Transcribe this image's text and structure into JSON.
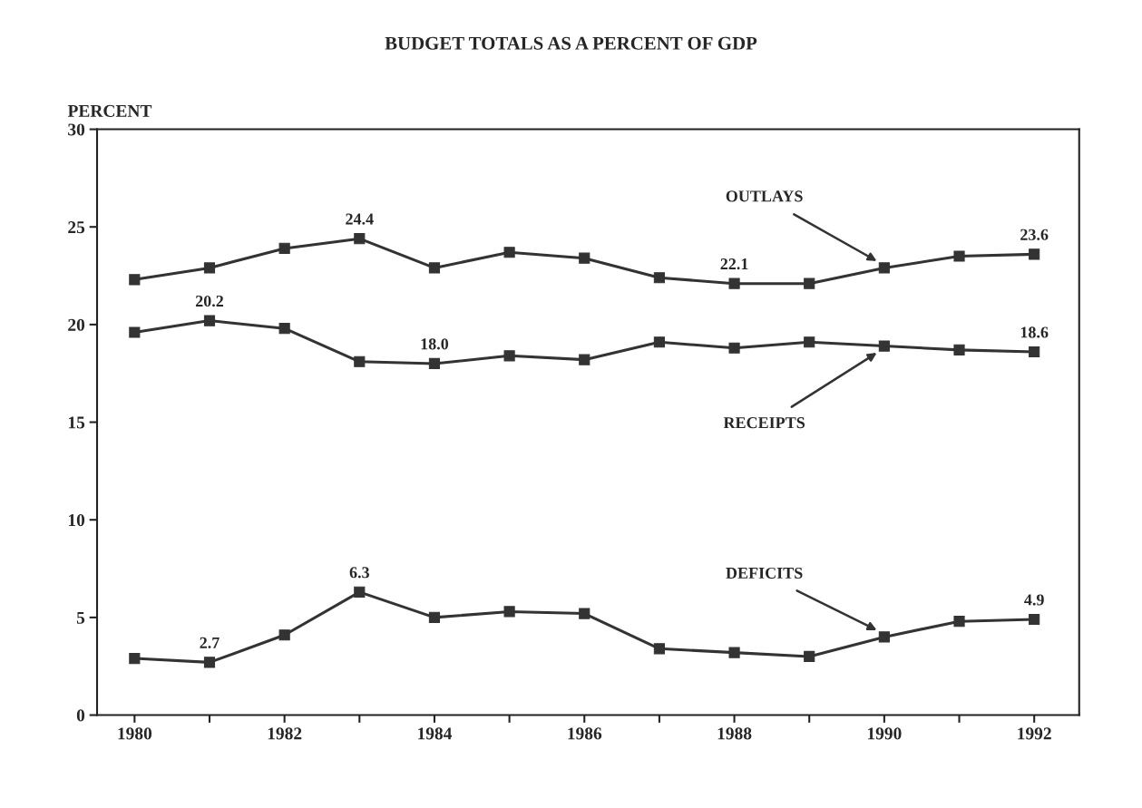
{
  "chart_data": {
    "type": "line",
    "title": "BUDGET TOTALS AS A PERCENT OF GDP",
    "ylabel": "PERCENT",
    "x": [
      1980,
      1981,
      1982,
      1983,
      1984,
      1985,
      1986,
      1987,
      1988,
      1989,
      1990,
      1991,
      1992
    ],
    "series": [
      {
        "name": "OUTLAYS",
        "color": "#333333",
        "values": [
          22.3,
          22.9,
          23.9,
          24.4,
          22.9,
          23.7,
          23.4,
          22.4,
          22.1,
          22.1,
          22.9,
          23.5,
          23.6
        ],
        "value_labels": [
          null,
          null,
          null,
          "24.4",
          null,
          null,
          null,
          null,
          "22.1",
          null,
          null,
          null,
          "23.6"
        ]
      },
      {
        "name": "RECEIPTS",
        "color": "#333333",
        "values": [
          19.6,
          20.2,
          19.8,
          18.1,
          18.0,
          18.4,
          18.2,
          19.1,
          18.8,
          19.1,
          18.9,
          18.7,
          18.6
        ],
        "value_labels": [
          null,
          "20.2",
          null,
          null,
          "18.0",
          null,
          null,
          null,
          null,
          null,
          null,
          null,
          "18.6"
        ]
      },
      {
        "name": "DEFICITS",
        "color": "#333333",
        "values": [
          2.9,
          2.7,
          4.1,
          6.3,
          5.0,
          5.3,
          5.2,
          3.4,
          3.2,
          3.0,
          4.0,
          4.8,
          4.9
        ],
        "value_labels": [
          null,
          "2.7",
          null,
          "6.3",
          null,
          null,
          null,
          null,
          null,
          null,
          null,
          null,
          "4.9"
        ]
      }
    ],
    "xlim": [
      1979.5,
      1992.6
    ],
    "xticks": [
      1980,
      {
        "value": 1981,
        "label": null
      },
      1982,
      {
        "value": 1983,
        "label": null
      },
      1984,
      {
        "value": 1985,
        "label": null
      },
      1986,
      {
        "value": 1987,
        "label": null
      },
      1988,
      {
        "value": 1989,
        "label": null
      },
      1990,
      {
        "value": 1991,
        "label": null
      },
      1992
    ],
    "ylim": [
      0,
      30
    ],
    "yticks": [
      0,
      5,
      10,
      15,
      20,
      25,
      30
    ],
    "marker": "square",
    "line_style": "solid",
    "grid": false,
    "legend": false
  }
}
